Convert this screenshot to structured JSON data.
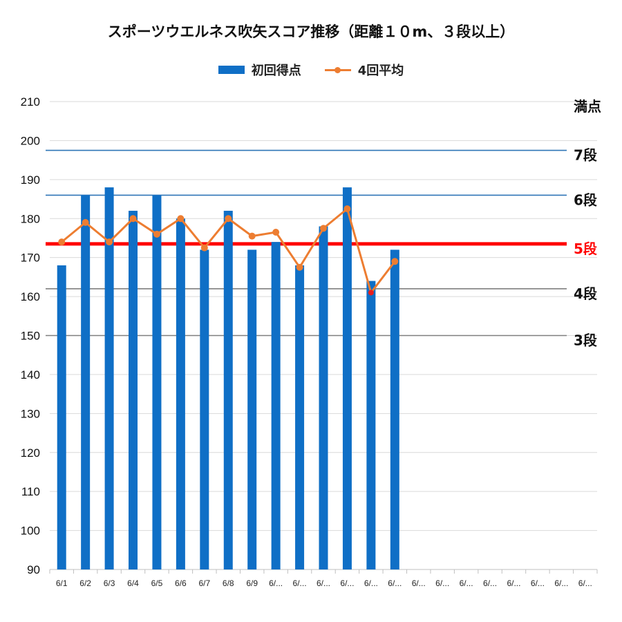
{
  "chart_data": {
    "type": "bar",
    "title": "スポーツウエルネス吹矢スコア推移（距離１０m、３段以上）",
    "categories": [
      "6/1",
      "6/2",
      "6/3",
      "6/4",
      "6/5",
      "6/6",
      "6/7",
      "6/8",
      "6/9",
      "6/...",
      "6/...",
      "6/...",
      "6/...",
      "6/...",
      "6/...",
      "6/...",
      "6/...",
      "6/...",
      "6/...",
      "6/...",
      "6/...",
      "6/...",
      "6/..."
    ],
    "series": [
      {
        "name": "初回得点",
        "type": "bar",
        "color": "#0F6FC6",
        "values": [
          168,
          186,
          188,
          182,
          186,
          180,
          172,
          182,
          172,
          174,
          168,
          178,
          188,
          164,
          172,
          null,
          null,
          null,
          null,
          null,
          null,
          null,
          null
        ]
      },
      {
        "name": "4回平均",
        "type": "line",
        "color": "#ED7D31",
        "values": [
          174,
          179,
          174,
          180,
          176,
          180,
          172.5,
          180,
          175.5,
          176.5,
          167.5,
          177.5,
          182.5,
          161,
          169,
          null,
          null,
          null,
          null,
          null,
          null,
          null,
          null
        ]
      }
    ],
    "highlight_point": {
      "index": 13,
      "color": "#E81E1E"
    },
    "ylim": [
      90,
      210
    ],
    "yticks": [
      90,
      100,
      110,
      120,
      130,
      140,
      150,
      160,
      170,
      180,
      190,
      200,
      210
    ],
    "xlabel": "",
    "ylabel": "",
    "grid": true,
    "legend_position": "top",
    "reference_lines": [
      {
        "label": "満点",
        "value": 210,
        "color": "#D9D9D9",
        "label_color": "#111111",
        "style": "grid"
      },
      {
        "label": "7段",
        "value": 197.5,
        "color": "#2E75B6",
        "label_color": "#111111",
        "style": "thin"
      },
      {
        "label": "6段",
        "value": 186,
        "color": "#2E75B6",
        "label_color": "#111111",
        "style": "thin"
      },
      {
        "label": "5段",
        "value": 173.5,
        "color": "#FF0000",
        "label_color": "#FF0000",
        "style": "thick"
      },
      {
        "label": "4段",
        "value": 162,
        "color": "#7F7F7F",
        "label_color": "#111111",
        "style": "thin"
      },
      {
        "label": "3段",
        "value": 150,
        "color": "#7F7F7F",
        "label_color": "#111111",
        "style": "thin"
      }
    ]
  }
}
